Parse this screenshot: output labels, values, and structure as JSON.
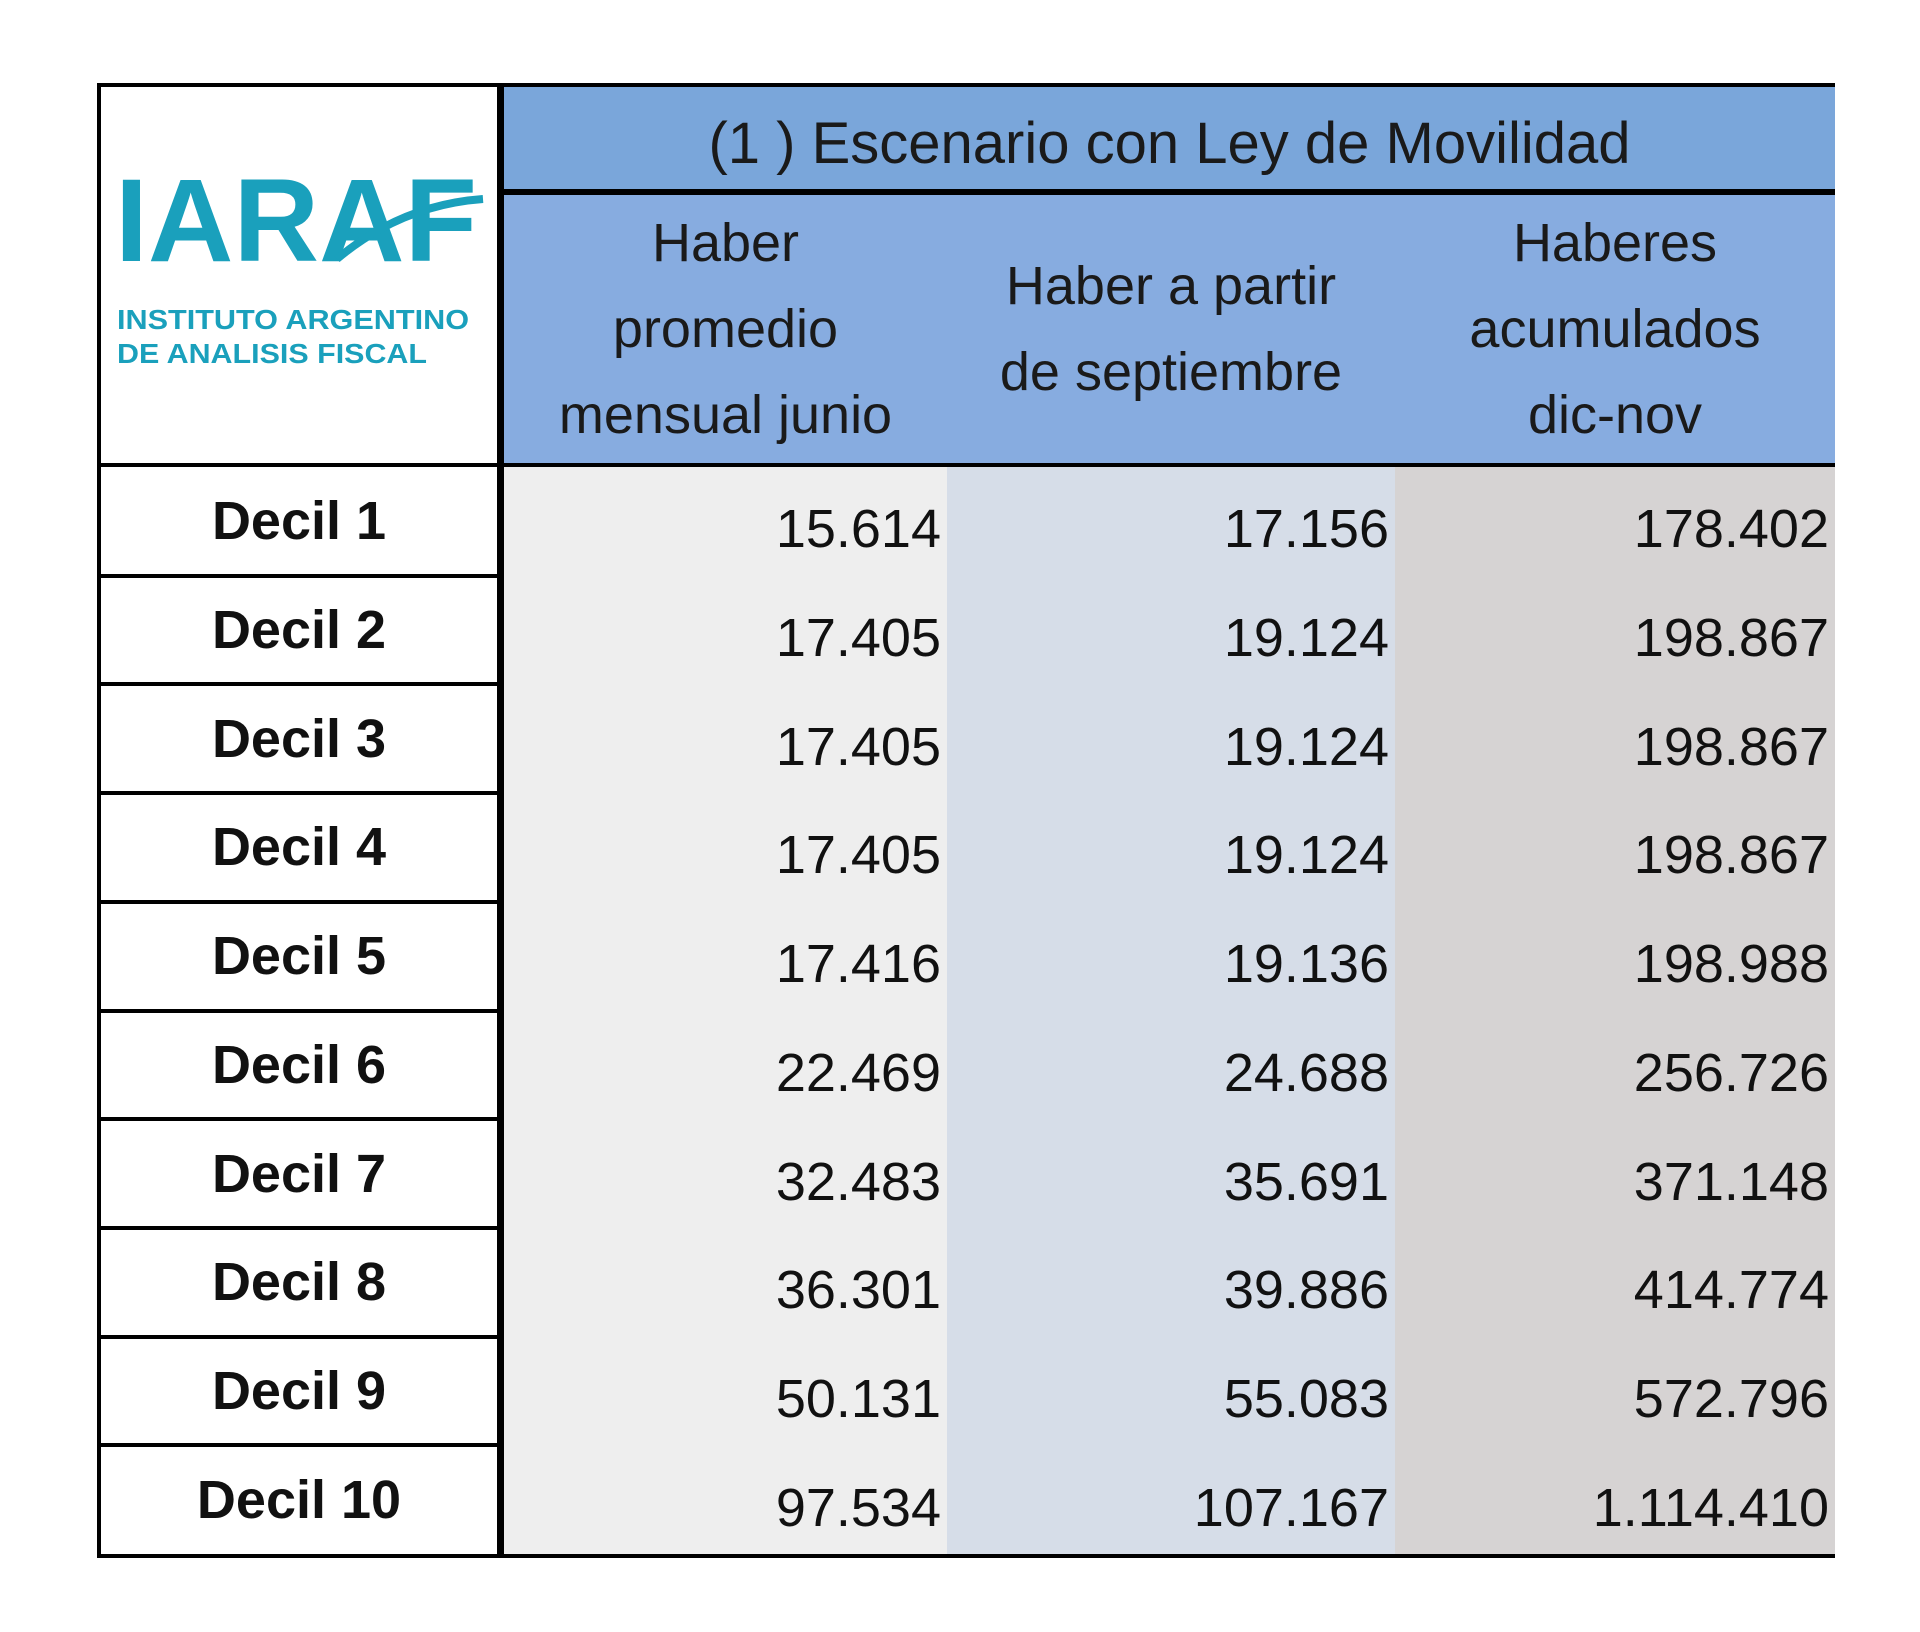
{
  "logo": {
    "mark": "IARAF",
    "line1": "INSTITUTO ARGENTINO",
    "line2": "DE ANALISIS FISCAL",
    "color": "#1aa0bc"
  },
  "chart_data": {
    "type": "table",
    "title": "(1 ) Escenario con Ley de Movilidad",
    "columns": [
      "Haber\npromedio\nmensual junio",
      "Haber a partir\nde septiembre",
      "Haberes\nacumulados\ndic-nov"
    ],
    "rows": [
      {
        "label": "Decil 1",
        "values": [
          "15.614",
          "17.156",
          "178.402"
        ]
      },
      {
        "label": "Decil 2",
        "values": [
          "17.405",
          "19.124",
          "198.867"
        ]
      },
      {
        "label": "Decil 3",
        "values": [
          "17.405",
          "19.124",
          "198.867"
        ]
      },
      {
        "label": "Decil 4",
        "values": [
          "17.405",
          "19.124",
          "198.867"
        ]
      },
      {
        "label": "Decil 5",
        "values": [
          "17.416",
          "19.136",
          "198.988"
        ]
      },
      {
        "label": "Decil 6",
        "values": [
          "22.469",
          "24.688",
          "256.726"
        ]
      },
      {
        "label": "Decil 7",
        "values": [
          "32.483",
          "35.691",
          "371.148"
        ]
      },
      {
        "label": "Decil 8",
        "values": [
          "36.301",
          "39.886",
          "414.774"
        ]
      },
      {
        "label": "Decil 9",
        "values": [
          "50.131",
          "55.083",
          "572.796"
        ]
      },
      {
        "label": "Decil 10",
        "values": [
          "97.534",
          "107.167",
          "1.114.410"
        ]
      }
    ],
    "colors": {
      "scenario_header": "#7aa6da",
      "column_header": "#87ace0",
      "column_1_fill": "#eeeeee",
      "column_2_fill": "#d6dde8",
      "column_3_fill": "#d6d3d3"
    }
  }
}
